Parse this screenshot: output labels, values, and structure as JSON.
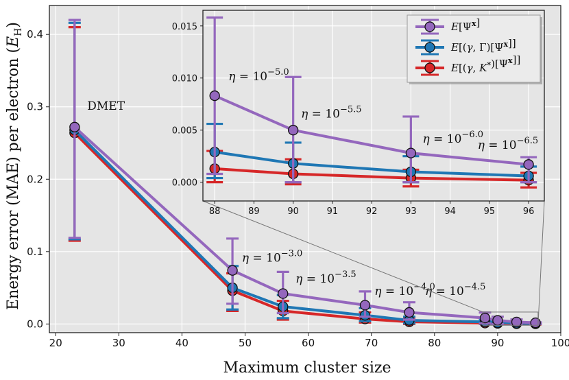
{
  "chart_data": {
    "type": "line",
    "xlabel": "Maximum cluster size",
    "ylabel": "Energy error (MAE) per electron (E_H)",
    "xlim": [
      19,
      100
    ],
    "ylim": [
      -0.012,
      0.44
    ],
    "xticks": [
      "20",
      "30",
      "40",
      "50",
      "60",
      "70",
      "80",
      "90",
      "100"
    ],
    "yticks": [
      "0.0",
      "0.1",
      "0.2",
      "0.3",
      "0.4"
    ],
    "x": [
      23,
      48,
      56,
      69,
      76,
      88,
      90,
      93,
      96
    ],
    "series": [
      {
        "name": "E[Ψˣ]",
        "color": "#9467bd",
        "values": [
          0.272,
          0.074,
          0.042,
          0.026,
          0.016,
          0.0083,
          0.005,
          0.0028,
          0.0017
        ],
        "err_low": [
          0.119,
          0.028,
          0.015,
          0.01,
          0.006,
          0.0008,
          0.0,
          0.0,
          0.0
        ],
        "err_high": [
          0.42,
          0.118,
          0.072,
          0.045,
          0.03,
          0.0158,
          0.0101,
          0.0063,
          0.0024
        ]
      },
      {
        "name": "E[(γ,Γ)[Ψˣ]]",
        "color": "#1f77b4",
        "values": [
          0.268,
          0.05,
          0.024,
          0.012,
          0.005,
          0.0029,
          0.0018,
          0.001,
          0.0006
        ],
        "err_low": [
          0.117,
          0.02,
          0.008,
          0.004,
          0.001,
          0.0004,
          0.0,
          0.0,
          0.0
        ],
        "err_high": [
          0.416,
          0.08,
          0.04,
          0.022,
          0.01,
          0.0056,
          0.0038,
          0.0025,
          0.0015
        ]
      },
      {
        "name": "E[(γ,K*)[Ψˣ]]",
        "color": "#d62728",
        "values": [
          0.264,
          0.046,
          0.018,
          0.007,
          0.003,
          0.0013,
          0.0008,
          0.0004,
          0.0002
        ],
        "err_low": [
          0.115,
          0.018,
          0.006,
          0.002,
          0.0,
          0.0,
          -0.0002,
          -0.0004,
          -0.0005
        ],
        "err_high": [
          0.41,
          0.07,
          0.032,
          0.016,
          0.008,
          0.003,
          0.0022,
          0.0012,
          0.0009
        ]
      }
    ],
    "annotations": [
      {
        "text": "DMET",
        "x": 25,
        "y": 0.296
      },
      {
        "text": "η = 10",
        "exp": "−3.0",
        "x": 49.5,
        "y": 0.086
      },
      {
        "text": "η = 10",
        "exp": "−3.5",
        "x": 58,
        "y": 0.057
      },
      {
        "text": "η = 10",
        "exp": "−4.0",
        "x": 70.5,
        "y": 0.04
      },
      {
        "text": "η = 10",
        "exp": "−4.5",
        "x": 78.5,
        "y": 0.04
      }
    ],
    "inset": {
      "xlim": [
        87.7,
        96.4
      ],
      "ylim": [
        -0.0018,
        0.0165
      ],
      "xticks": [
        "88",
        "89",
        "90",
        "91",
        "92",
        "93",
        "94",
        "95",
        "96"
      ],
      "yticks": [
        "0.000",
        "0.005",
        "0.010",
        "0.015"
      ],
      "x_index_start": 5,
      "annotations": [
        {
          "text": "η = 10",
          "exp": "−5.0",
          "x": 88.35,
          "y": 0.0098
        },
        {
          "text": "η = 10",
          "exp": "−5.5",
          "x": 90.2,
          "y": 0.0062
        },
        {
          "text": "η = 10",
          "exp": "−6.0",
          "x": 93.3,
          "y": 0.0038
        },
        {
          "text": "η = 10",
          "exp": "−6.5",
          "x": 94.7,
          "y": 0.0032
        }
      ]
    },
    "legend_placement": "inset-top-right",
    "grid": true,
    "background": "#e5e5e5"
  }
}
